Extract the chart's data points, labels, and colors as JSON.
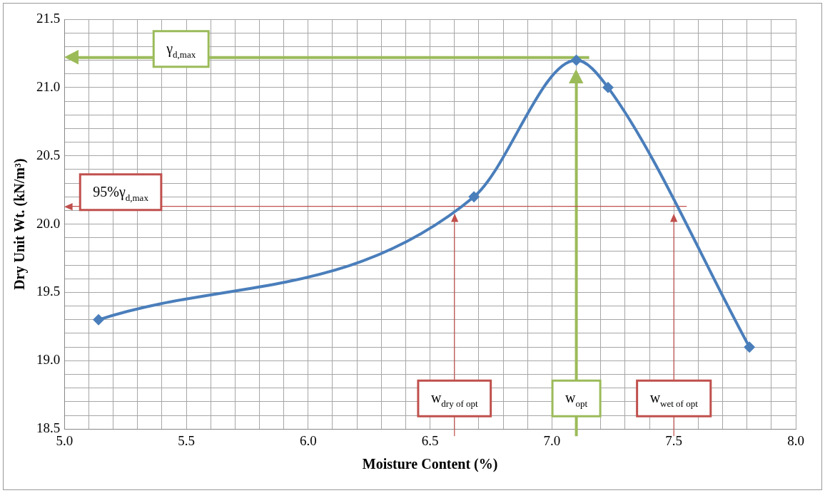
{
  "chart_data": {
    "type": "line",
    "xlabel": "Moisture Content (%)",
    "ylabel": "Dry Unit Wt. (kN/m³)",
    "x": [
      5.14,
      6.68,
      7.1,
      7.23,
      7.81
    ],
    "series": [
      {
        "color": "#4a7ebb",
        "values": [
          19.3,
          20.2,
          21.2,
          21.0,
          19.1
        ]
      }
    ],
    "marker": "diamond",
    "line_style": "solid",
    "grid": true,
    "legend": false,
    "xlim": [
      5.0,
      8.0
    ],
    "xticks": [
      {
        "value": 5.0,
        "label": "5.0"
      },
      {
        "value": 5.1,
        "label": null
      },
      {
        "value": 5.2,
        "label": null
      },
      {
        "value": 5.3,
        "label": null
      },
      {
        "value": 5.4,
        "label": null
      },
      {
        "value": 5.5,
        "label": "5.5"
      },
      {
        "value": 5.6,
        "label": null
      },
      {
        "value": 5.7,
        "label": null
      },
      {
        "value": 5.8,
        "label": null
      },
      {
        "value": 5.9,
        "label": null
      },
      {
        "value": 6.0,
        "label": "6.0"
      },
      {
        "value": 6.1,
        "label": null
      },
      {
        "value": 6.2,
        "label": null
      },
      {
        "value": 6.3,
        "label": null
      },
      {
        "value": 6.4,
        "label": null
      },
      {
        "value": 6.5,
        "label": "6.5"
      },
      {
        "value": 6.6,
        "label": null
      },
      {
        "value": 6.7,
        "label": null
      },
      {
        "value": 6.8,
        "label": null
      },
      {
        "value": 6.9,
        "label": null
      },
      {
        "value": 7.0,
        "label": "7.0"
      },
      {
        "value": 7.1,
        "label": null
      },
      {
        "value": 7.2,
        "label": null
      },
      {
        "value": 7.3,
        "label": null
      },
      {
        "value": 7.4,
        "label": null
      },
      {
        "value": 7.5,
        "label": "7.5"
      },
      {
        "value": 7.6,
        "label": null
      },
      {
        "value": 7.7,
        "label": null
      },
      {
        "value": 7.8,
        "label": null
      },
      {
        "value": 7.9,
        "label": null
      },
      {
        "value": 8.0,
        "label": "8.0"
      }
    ],
    "ylim": [
      18.5,
      21.5
    ],
    "yticks": [
      {
        "value": 18.5,
        "label": "18.5"
      },
      {
        "value": 18.6,
        "label": null
      },
      {
        "value": 18.7,
        "label": null
      },
      {
        "value": 18.8,
        "label": null
      },
      {
        "value": 18.9,
        "label": null
      },
      {
        "value": 19.0,
        "label": "19.0"
      },
      {
        "value": 19.1,
        "label": null
      },
      {
        "value": 19.2,
        "label": null
      },
      {
        "value": 19.3,
        "label": null
      },
      {
        "value": 19.4,
        "label": null
      },
      {
        "value": 19.5,
        "label": "19.5"
      },
      {
        "value": 19.6,
        "label": null
      },
      {
        "value": 19.7,
        "label": null
      },
      {
        "value": 19.8,
        "label": null
      },
      {
        "value": 19.9,
        "label": null
      },
      {
        "value": 20.0,
        "label": "20.0"
      },
      {
        "value": 20.1,
        "label": null
      },
      {
        "value": 20.2,
        "label": null
      },
      {
        "value": 20.3,
        "label": null
      },
      {
        "value": 20.4,
        "label": null
      },
      {
        "value": 20.5,
        "label": "20.5"
      },
      {
        "value": 20.6,
        "label": null
      },
      {
        "value": 20.7,
        "label": null
      },
      {
        "value": 20.8,
        "label": null
      },
      {
        "value": 20.9,
        "label": null
      },
      {
        "value": 21.0,
        "label": "21.0"
      },
      {
        "value": 21.1,
        "label": null
      },
      {
        "value": 21.2,
        "label": null
      },
      {
        "value": 21.3,
        "label": null
      },
      {
        "value": 21.4,
        "label": null
      },
      {
        "value": 21.5,
        "label": "21.5"
      }
    ],
    "ref_lines": [
      {
        "axis": "y",
        "value": 21.22,
        "label": "γ$_{d,max}$",
        "color": "#9bbb59"
      },
      {
        "axis": "x",
        "value": 7.1,
        "label": "w$_{opt}$",
        "color": "#9bbb59"
      },
      {
        "axis": "y",
        "value": 20.13,
        "label": "95%γ$_{d,max}$",
        "color": "#c0504d"
      },
      {
        "axis": "x",
        "value": 6.6,
        "label": "w$_{dry of opt}$",
        "color": "#c0504d"
      },
      {
        "axis": "x",
        "value": 7.5,
        "label": "w$_{wet of opt}$",
        "color": "#c0504d"
      }
    ]
  }
}
